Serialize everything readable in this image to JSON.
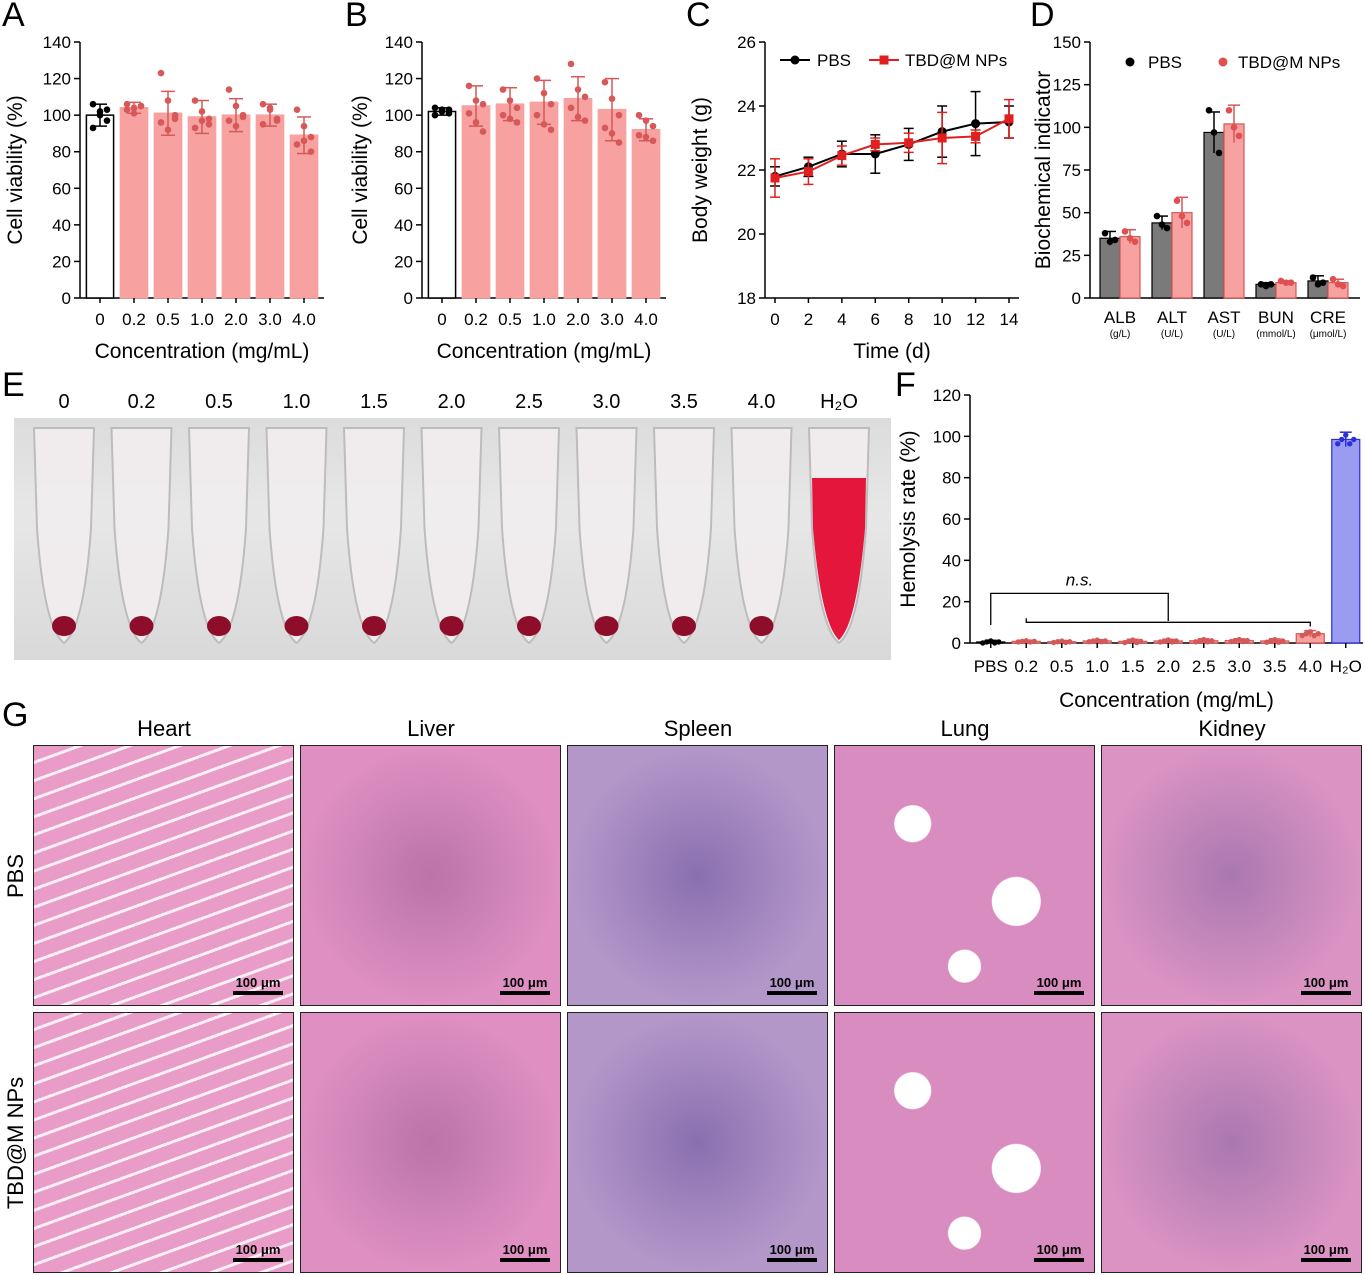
{
  "panels": {
    "A": "A",
    "B": "B",
    "C": "C",
    "D": "D",
    "E": "E",
    "F": "F",
    "G": "G"
  },
  "colors": {
    "pbs_bar": "#ffffff",
    "np_bar": "#f7a1a0",
    "np_edge": "#d65858",
    "pbs_gray": "#7a7a7a",
    "red_line": "#e02020",
    "h2o_bar": "#9a9cf2",
    "h2o_edge": "#2b2fd6",
    "he_pink": "#e58cc0",
    "he_dark": "#7a4a9a"
  },
  "chart_data": [
    {
      "id": "A",
      "type": "bar",
      "categories": [
        "0",
        "0.2",
        "0.5",
        "1.0",
        "2.0",
        "3.0",
        "4.0"
      ],
      "values": [
        100,
        104,
        101,
        99,
        100,
        100,
        89
      ],
      "errors": [
        6,
        3,
        12,
        9,
        9,
        6,
        10
      ],
      "points": [
        [
          106,
          102,
          97,
          93,
          100,
          103
        ],
        [
          106,
          104,
          105,
          103,
          101,
          105
        ],
        [
          123,
          108,
          100,
          96,
          92,
          98
        ],
        [
          108,
          102,
          98,
          93,
          97,
          95
        ],
        [
          114,
          105,
          99,
          97,
          94,
          100
        ],
        [
          106,
          103,
          98,
          95,
          104,
          97
        ],
        [
          103,
          94,
          88,
          84,
          86,
          80
        ]
      ],
      "xlabel": "Concentration (mg/mL)",
      "ylabel": "Cell viability (%)",
      "ylim": [
        0,
        140
      ],
      "yticks": [
        "0",
        "20",
        "40",
        "60",
        "80",
        "100",
        "120",
        "140"
      ]
    },
    {
      "id": "B",
      "type": "bar",
      "categories": [
        "0",
        "0.2",
        "0.5",
        "1.0",
        "2.0",
        "3.0",
        "4.0"
      ],
      "values": [
        102,
        105,
        106,
        107,
        109,
        103,
        92
      ],
      "errors": [
        2,
        11,
        9,
        12,
        12,
        17,
        6
      ],
      "points": [
        [
          104,
          103,
          101,
          100,
          102,
          103
        ],
        [
          116,
          108,
          106,
          101,
          96,
          91
        ],
        [
          114,
          108,
          104,
          100,
          98,
          96
        ],
        [
          120,
          112,
          106,
          100,
          95,
          92
        ],
        [
          128,
          114,
          110,
          104,
          99,
          97
        ],
        [
          118,
          109,
          100,
          93,
          90,
          85
        ],
        [
          100,
          97,
          94,
          89,
          88,
          86
        ]
      ],
      "xlabel": "Concentration (mg/mL)",
      "ylabel": "Cell viability (%)",
      "ylim": [
        0,
        140
      ],
      "yticks": [
        "0",
        "20",
        "40",
        "60",
        "80",
        "100",
        "120",
        "140"
      ]
    },
    {
      "id": "C",
      "type": "line",
      "x": [
        0,
        2,
        4,
        6,
        8,
        10,
        12,
        14
      ],
      "series": [
        {
          "name": "PBS",
          "values": [
            21.8,
            22.1,
            22.5,
            22.5,
            22.8,
            23.2,
            23.45,
            23.5
          ],
          "errors": [
            0.3,
            0.3,
            0.4,
            0.6,
            0.5,
            0.8,
            1.0,
            0.5
          ]
        },
        {
          "name": "TBD@M NPs",
          "values": [
            21.75,
            21.95,
            22.45,
            22.8,
            22.85,
            23.0,
            23.05,
            23.6
          ],
          "errors": [
            0.6,
            0.4,
            0.3,
            0.2,
            0.3,
            0.8,
            0.2,
            0.6
          ]
        }
      ],
      "xlabel": "Time (d)",
      "ylabel": "Body weight (g)",
      "ylim": [
        18,
        26
      ],
      "yticks": [
        "18",
        "20",
        "22",
        "24",
        "26"
      ],
      "xticks": [
        "0",
        "2",
        "4",
        "6",
        "8",
        "10",
        "12",
        "14"
      ]
    },
    {
      "id": "D",
      "type": "bar",
      "categories": [
        "ALB",
        "ALT",
        "AST",
        "BUN",
        "CRE"
      ],
      "units": [
        "(g/L)",
        "(U/L)",
        "(U/L)",
        "(mmol/L)",
        "(μmol/L)"
      ],
      "series": [
        {
          "name": "PBS",
          "values": [
            35,
            44,
            97,
            8,
            10
          ],
          "errors": [
            4,
            4,
            12,
            1,
            3
          ],
          "points": [
            [
              38,
              33,
              34
            ],
            [
              48,
              43,
              41
            ],
            [
              110,
              97,
              85
            ],
            [
              8,
              7,
              8
            ],
            [
              12,
              8,
              9
            ]
          ]
        },
        {
          "name": "TBD@M NPs",
          "values": [
            36,
            50,
            102,
            9,
            9
          ],
          "errors": [
            4,
            9,
            11,
            1,
            2
          ],
          "points": [
            [
              39,
              35,
              33
            ],
            [
              57,
              48,
              44
            ],
            [
              110,
              100,
              95
            ],
            [
              10,
              9,
              9
            ],
            [
              11,
              8,
              7
            ]
          ]
        }
      ],
      "ylabel": "Biochemical indicator",
      "ylim": [
        0,
        150
      ],
      "yticks": [
        "0",
        "25",
        "50",
        "75",
        "100",
        "125",
        "150"
      ]
    },
    {
      "id": "F",
      "type": "bar",
      "categories": [
        "PBS",
        "0.2",
        "0.5",
        "1.0",
        "1.5",
        "2.0",
        "2.5",
        "3.0",
        "3.5",
        "4.0",
        "H₂O"
      ],
      "values": [
        0.5,
        0.8,
        0.6,
        1.0,
        0.8,
        1.0,
        1.1,
        1.2,
        1.0,
        4.5,
        98.5
      ],
      "errors": [
        0.8,
        0.5,
        0.6,
        0.6,
        1.0,
        0.8,
        0.9,
        0.8,
        1.0,
        1.5,
        3.5
      ],
      "xlabel": "Concentration (mg/mL)",
      "ylabel": "Hemolysis rate (%)",
      "ylim": [
        0,
        120
      ],
      "yticks": [
        "0",
        "20",
        "40",
        "60",
        "80",
        "100",
        "120"
      ],
      "annotation": "n.s."
    }
  ],
  "legends": {
    "C": [
      "PBS",
      "TBD@M NPs"
    ],
    "D": [
      "PBS",
      "TBD@M NPs"
    ]
  },
  "tubes": {
    "labels": [
      "0",
      "0.2",
      "0.5",
      "1.0",
      "1.5",
      "2.0",
      "2.5",
      "3.0",
      "3.5",
      "4.0",
      "H₂O"
    ]
  },
  "histology": {
    "columns": [
      "Heart",
      "Liver",
      "Spleen",
      "Lung",
      "Kidney"
    ],
    "rows": [
      "PBS",
      "TBD@M NPs"
    ],
    "scalebar": "100 μm"
  }
}
